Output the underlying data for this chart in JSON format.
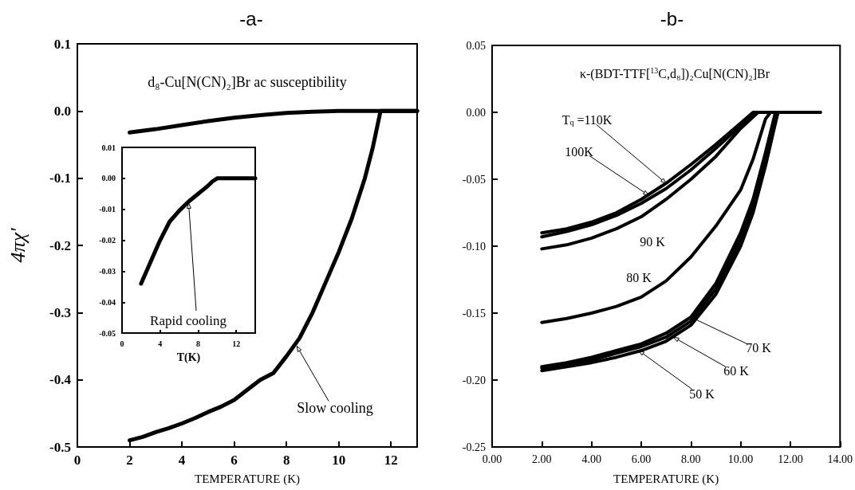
{
  "chart_data": [
    {
      "type": "line",
      "title": "-a-",
      "xlabel": "TEMPERATURE (K)",
      "ylabel": "4πχ'",
      "xlim": [
        0,
        13
      ],
      "xticks": [
        0,
        2,
        4,
        6,
        8,
        10,
        12
      ],
      "ylim": [
        -0.5,
        0.1
      ],
      "yticks": [
        {
          "value": 0.1,
          "label": "0.1"
        },
        {
          "value": 0,
          "label": "0.0"
        },
        {
          "value": -0.1,
          "label": "-0.1"
        },
        {
          "value": -0.2,
          "label": "-0.2"
        },
        {
          "value": -0.3,
          "label": "-0.3"
        },
        {
          "value": -0.4,
          "label": "-0.4"
        },
        {
          "value": -0.5,
          "label": "-0.5"
        }
      ],
      "series": [
        {
          "color": "#000000",
          "x": [
            2,
            3,
            4,
            5,
            6,
            7,
            8,
            9,
            10,
            11,
            12,
            13
          ],
          "values": [
            -0.032,
            -0.027,
            -0.021,
            -0.015,
            -0.01,
            -0.006,
            -0.003,
            -0.001,
            0,
            0,
            0,
            0
          ]
        },
        {
          "color": "#000000",
          "x": [
            2,
            2.5,
            3,
            3.5,
            4,
            4.5,
            5,
            5.5,
            6,
            6.5,
            7,
            7.5,
            8,
            8.5,
            9,
            9.5,
            10,
            10.5,
            11,
            11.3,
            11.6,
            12,
            12.5,
            13
          ],
          "values": [
            -0.49,
            -0.485,
            -0.478,
            -0.472,
            -0.465,
            -0.457,
            -0.448,
            -0.44,
            -0.43,
            -0.415,
            -0.4,
            -0.39,
            -0.365,
            -0.338,
            -0.3,
            -0.255,
            -0.21,
            -0.16,
            -0.1,
            -0.055,
            0,
            0,
            0,
            0
          ]
        }
      ],
      "annotations": [
        "d₈-Cu[N(CN)₂]Br ac susceptibility",
        {
          "text": "Slow cooling",
          "x": 8.4,
          "y": -0.35
        }
      ]
    },
    {
      "type": "line",
      "xlabel": "T(K)",
      "xlim": [
        0,
        14
      ],
      "xticks": [
        0,
        4,
        8,
        12
      ],
      "ylim": [
        -0.05,
        0.01
      ],
      "yticks": [
        0.01,
        {
          "value": 0,
          "label": "0.00"
        },
        -0.01,
        -0.02,
        -0.03,
        -0.04,
        -0.05
      ],
      "series": [
        {
          "color": "#000000",
          "x": [
            2,
            3,
            4,
            5,
            6,
            7,
            8,
            9,
            9.5,
            10,
            11,
            12,
            13,
            14
          ],
          "values": [
            -0.034,
            -0.027,
            -0.02,
            -0.014,
            -0.0105,
            -0.0075,
            -0.005,
            -0.0025,
            -0.001,
            0,
            0,
            0,
            0,
            0
          ]
        }
      ],
      "annotations": [
        {
          "text": "Rapid cooling",
          "x": 7,
          "y": -0.008
        }
      ]
    },
    {
      "type": "line",
      "title": "-b-",
      "xlabel": "TEMPERATURE (K)",
      "xlim": [
        0,
        14
      ],
      "xticks": [
        {
          "value": 0,
          "label": "0.00"
        },
        {
          "value": 2,
          "label": "2.00"
        },
        {
          "value": 4,
          "label": "4.00"
        },
        {
          "value": 6,
          "label": "6.00"
        },
        {
          "value": 8,
          "label": "8.00"
        },
        {
          "value": 10,
          "label": "10.00"
        },
        {
          "value": 12,
          "label": "12.00"
        },
        {
          "value": 14,
          "label": "14.00"
        }
      ],
      "ylim": [
        -0.25,
        0.05
      ],
      "yticks": [
        0.05,
        {
          "value": 0,
          "label": "0.00"
        },
        -0.05,
        {
          "value": -0.1,
          "label": "-0.10"
        },
        -0.15,
        {
          "value": -0.2,
          "label": "-0.20"
        },
        -0.25
      ],
      "series": [
        {
          "color": "#000000",
          "x": [
            2,
            3,
            4,
            5,
            6,
            7,
            8,
            9,
            10,
            10.5,
            11.5,
            13.2
          ],
          "values": [
            -0.09,
            -0.087,
            -0.082,
            -0.075,
            -0.065,
            -0.053,
            -0.039,
            -0.024,
            -0.008,
            0,
            0,
            0
          ]
        },
        {
          "color": "#000000",
          "x": [
            2,
            3,
            4,
            5,
            6,
            7,
            8,
            9,
            10,
            10.6,
            11.5,
            13.2
          ],
          "values": [
            -0.093,
            -0.089,
            -0.084,
            -0.077,
            -0.068,
            -0.057,
            -0.043,
            -0.027,
            -0.01,
            0,
            0,
            0
          ]
        },
        {
          "color": "#000000",
          "x": [
            2,
            3,
            4,
            5,
            6,
            7,
            8,
            9,
            10,
            10.7,
            11.5,
            13.2
          ],
          "values": [
            -0.102,
            -0.099,
            -0.094,
            -0.087,
            -0.078,
            -0.065,
            -0.05,
            -0.033,
            -0.012,
            0,
            0,
            0
          ]
        },
        {
          "color": "#000000",
          "x": [
            2,
            3,
            4,
            5,
            6,
            7,
            8,
            9,
            10,
            10.5,
            11,
            11.2,
            12,
            13.2
          ],
          "values": [
            -0.157,
            -0.154,
            -0.15,
            -0.145,
            -0.138,
            -0.126,
            -0.108,
            -0.085,
            -0.058,
            -0.035,
            -0.005,
            0,
            0,
            0
          ]
        },
        {
          "color": "#000000",
          "x": [
            2,
            3,
            4,
            5,
            6,
            7,
            8,
            9,
            10,
            10.5,
            11,
            11.4,
            12,
            13.2
          ],
          "values": [
            -0.19,
            -0.187,
            -0.183,
            -0.178,
            -0.173,
            -0.165,
            -0.153,
            -0.128,
            -0.09,
            -0.065,
            -0.03,
            0,
            0,
            0
          ]
        },
        {
          "color": "#000000",
          "x": [
            2,
            3,
            4,
            5,
            6,
            7,
            8,
            9,
            10,
            10.5,
            11,
            11.5,
            12,
            13.2
          ],
          "values": [
            -0.191,
            -0.188,
            -0.185,
            -0.18,
            -0.175,
            -0.168,
            -0.156,
            -0.132,
            -0.095,
            -0.07,
            -0.035,
            0,
            0,
            0
          ]
        },
        {
          "color": "#000000",
          "x": [
            2,
            3,
            4,
            5,
            6,
            7,
            8,
            9,
            10,
            10.5,
            11,
            11.5,
            12,
            13.2
          ],
          "values": [
            -0.193,
            -0.19,
            -0.187,
            -0.183,
            -0.178,
            -0.171,
            -0.159,
            -0.136,
            -0.1,
            -0.075,
            -0.04,
            0,
            0,
            0
          ]
        }
      ],
      "annotations": [
        "κ-(BDT-TTF[$^{13}$C,d₈])₂Cu[N(CN)₂]Br",
        {
          "text": "T$_{q}$ =110K",
          "x": 7,
          "y": -0.053
        },
        {
          "text": "100K",
          "x": 6.3,
          "y": -0.062
        },
        "90 K",
        "80 K",
        {
          "text": "70 K",
          "x": 8,
          "y": -0.153
        },
        {
          "text": "60 K",
          "x": 7.3,
          "y": -0.168
        },
        {
          "text": "50 K",
          "x": 5.9,
          "y": -0.178
        }
      ]
    }
  ]
}
